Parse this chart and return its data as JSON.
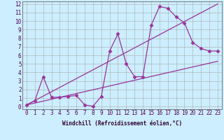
{
  "title": "",
  "xlabel": "Windchill (Refroidissement éolien,°C)",
  "background_color": "#cceeff",
  "grid_color": "#aaaaaa",
  "line_color": "#993399",
  "xlim": [
    -0.5,
    23.5
  ],
  "ylim": [
    -0.3,
    12.3
  ],
  "xticks": [
    0,
    1,
    2,
    3,
    4,
    5,
    6,
    7,
    8,
    9,
    10,
    11,
    12,
    13,
    14,
    15,
    16,
    17,
    18,
    19,
    20,
    21,
    22,
    23
  ],
  "yticks": [
    0,
    1,
    2,
    3,
    4,
    5,
    6,
    7,
    8,
    9,
    10,
    11,
    12
  ],
  "line1_x": [
    0,
    1,
    2,
    3,
    4,
    5,
    6,
    7,
    8,
    9,
    10,
    11,
    12,
    13,
    14,
    15,
    16,
    17,
    18,
    19,
    20,
    21,
    22,
    23
  ],
  "line1_y": [
    0.2,
    0.7,
    3.5,
    1.1,
    1.1,
    1.2,
    1.3,
    0.2,
    0.05,
    1.2,
    6.5,
    8.5,
    5.0,
    3.5,
    3.5,
    9.5,
    11.7,
    11.5,
    10.5,
    9.8,
    7.5,
    6.8,
    6.5,
    6.5
  ],
  "line2_x": [
    0,
    23
  ],
  "line2_y": [
    0.2,
    5.3
  ],
  "line3_x": [
    0,
    23
  ],
  "line3_y": [
    0.2,
    12.0
  ],
  "marker": "D",
  "markersize": 2.5,
  "linewidth": 0.9,
  "tick_fontsize": 5.5,
  "xlabel_fontsize": 5.5
}
